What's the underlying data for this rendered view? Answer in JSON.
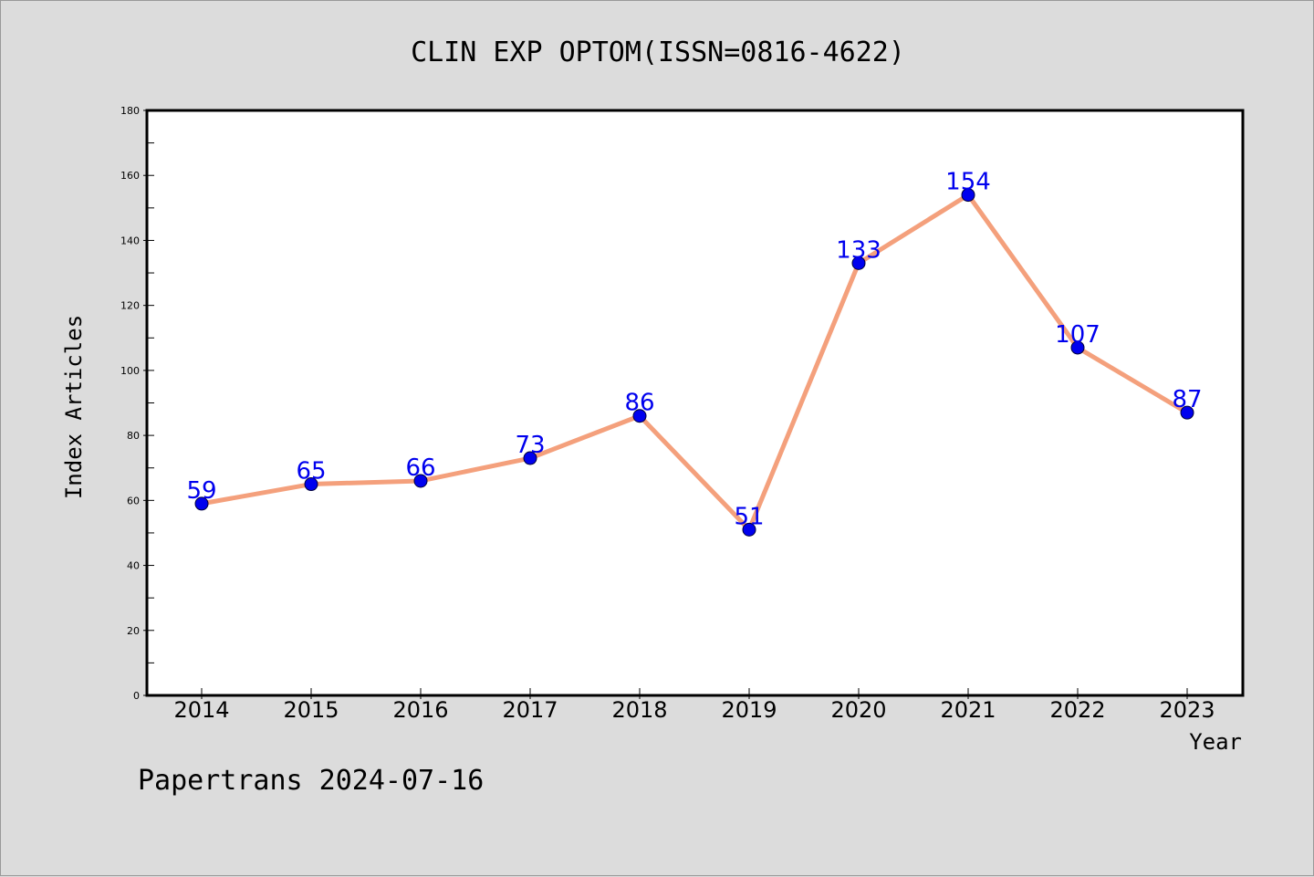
{
  "chart_data": {
    "type": "line",
    "title": "CLIN EXP OPTOM(ISSN=0816-4622)",
    "xlabel": "Year",
    "ylabel": "Index Articles",
    "categories": [
      "2014",
      "2015",
      "2016",
      "2017",
      "2018",
      "2019",
      "2020",
      "2021",
      "2022",
      "2023"
    ],
    "values": [
      59,
      65,
      66,
      73,
      86,
      51,
      133,
      154,
      107,
      87
    ],
    "ylim": [
      0,
      180
    ],
    "yticks": [
      0,
      20,
      40,
      60,
      80,
      100,
      120,
      140,
      160,
      180
    ],
    "grid": false,
    "show_data_labels": true,
    "colors": {
      "line": "#f4a07c",
      "marker": "#0000ee",
      "data_label": "#0000ee",
      "background": "#dcdcdc",
      "plot_background": "#ffffff"
    }
  },
  "footer": "Papertrans 2024-07-16"
}
